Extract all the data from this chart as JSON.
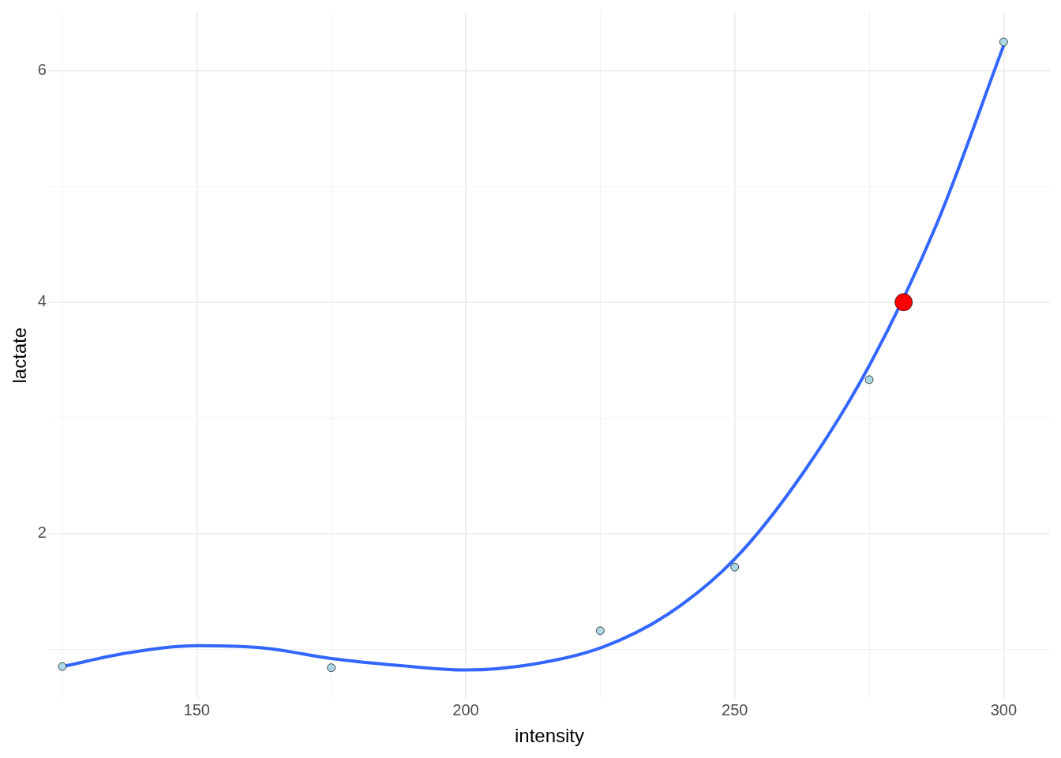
{
  "chart_data": {
    "type": "scatter",
    "xlabel": "intensity",
    "ylabel": "lactate",
    "xlim": [
      122.5,
      308.6
    ],
    "ylim": [
      0.57,
      6.51
    ],
    "xticks": [
      {
        "value": 125,
        "label": null
      },
      150,
      {
        "value": 175,
        "label": null
      },
      200,
      {
        "value": 225,
        "label": null
      },
      250,
      {
        "value": 275,
        "label": null
      },
      300
    ],
    "yticks": [
      {
        "value": 1,
        "label": null
      },
      2,
      {
        "value": 3,
        "label": null
      },
      4,
      {
        "value": 5,
        "label": null
      },
      6
    ],
    "grid": true,
    "legend": false,
    "marker": "circle",
    "series": [
      {
        "type": "line",
        "color": "#3366ff",
        "x": [
          125,
          137.5,
          150,
          162.5,
          175,
          187.5,
          200,
          212.5,
          225,
          237.5,
          250,
          262.5,
          275,
          287.5,
          300
        ],
        "values": [
          0.85,
          0.97,
          1.03,
          1.01,
          0.92,
          0.86,
          0.82,
          0.87,
          1.01,
          1.3,
          1.78,
          2.51,
          3.45,
          4.67,
          6.22
        ],
        "line_style": "solid",
        "marker": "none"
      },
      {
        "type": "scatter",
        "color": "#add8e6",
        "x": [
          125,
          175,
          225,
          250,
          275,
          300
        ],
        "values": [
          0.85,
          0.84,
          1.16,
          1.71,
          3.33,
          6.25
        ]
      },
      {
        "type": "scatter",
        "color": "#ff0000",
        "x": [
          281.4
        ],
        "values": [
          4.0
        ]
      }
    ]
  }
}
